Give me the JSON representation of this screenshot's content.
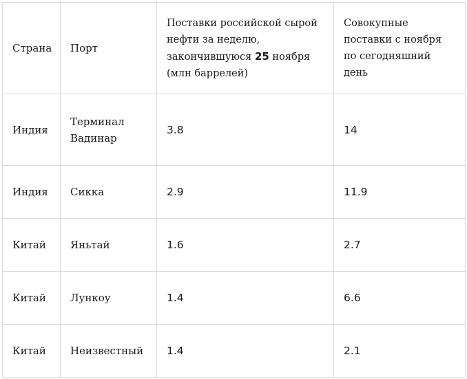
{
  "table": {
    "headers": {
      "country": "Страна",
      "port": "Порт",
      "weekly_prefix": "Поставки российской сырой нефти за неделю, закончившуюся ",
      "weekly_bold": "25",
      "weekly_suffix": " ноября (млн баррелей)",
      "cumulative": "Совокупные поставки с ноября по сегодняшний день"
    },
    "rows": [
      {
        "country": "Индия",
        "port": "Терминал Вадинар",
        "weekly": "3.8",
        "cumulative": "14"
      },
      {
        "country": "Индия",
        "port": "Сикка",
        "weekly": "2.9",
        "cumulative": "11.9"
      },
      {
        "country": "Китай",
        "port": "Яньтай",
        "weekly": "1.6",
        "cumulative": "2.7"
      },
      {
        "country": "Китай",
        "port": "Лункоу",
        "weekly": "1.4",
        "cumulative": "6.6"
      },
      {
        "country": "Китай",
        "port": "Неизвестный",
        "weekly": "1.4",
        "cumulative": "2.1"
      }
    ]
  }
}
